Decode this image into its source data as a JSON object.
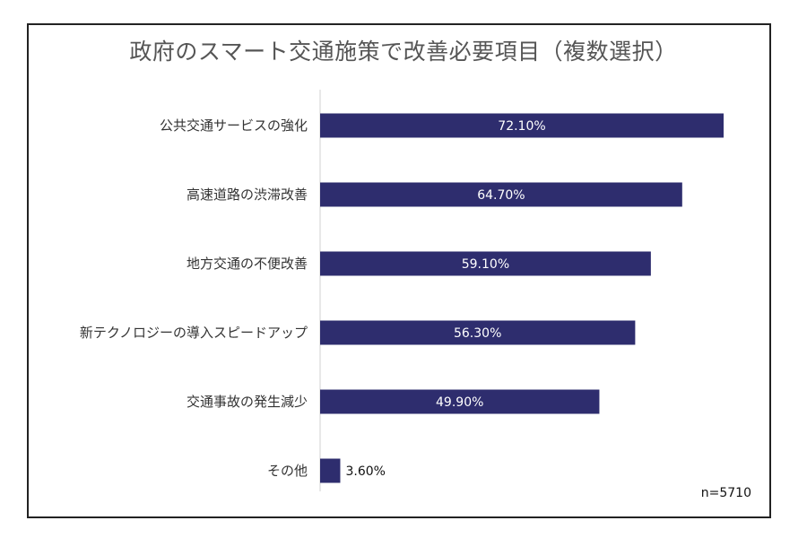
{
  "chart_data": {
    "type": "bar",
    "orientation": "horizontal",
    "title": "政府のスマート交通施策で改善必要項目（複数選択）",
    "categories": [
      "公共交通サービスの強化",
      "高速道路の渋滞改善",
      "地方交通の不便改善",
      "新テクノロジーの導入スピードアップ",
      "交通事故の発生減少",
      "その他"
    ],
    "values": [
      72.1,
      64.7,
      59.1,
      56.3,
      49.9,
      3.6
    ],
    "value_labels": [
      "72.10%",
      "64.70%",
      "59.10%",
      "56.30%",
      "49.90%",
      "3.60%"
    ],
    "xlim": [
      0,
      72.1
    ],
    "grid": false,
    "legend": "none",
    "bar_color": "#2e2d6e",
    "label_color_inside": "#ffffff",
    "label_color_outside": "#111111",
    "note": "n=5710"
  }
}
